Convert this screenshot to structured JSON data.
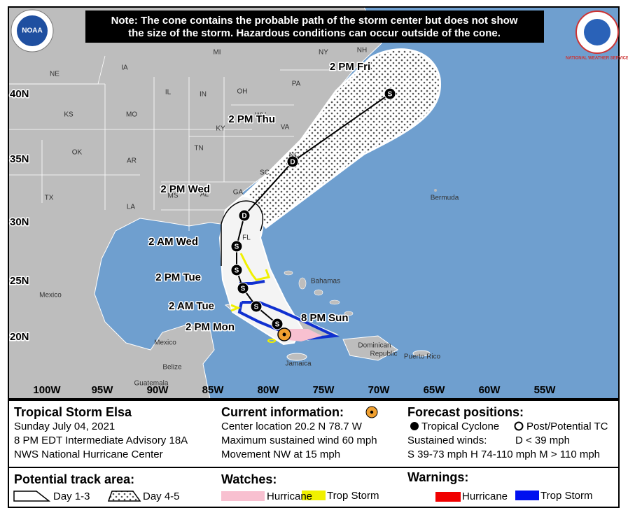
{
  "note": {
    "line1": "Note: The cone contains the probable path of the storm center but does not show",
    "line2": "the size of the storm. Hazardous conditions can occur outside of the cone."
  },
  "logos": {
    "noaa": "NOAA",
    "nws": "NATIONAL WEATHER SERVICE"
  },
  "map": {
    "latitudes": [
      "40N",
      "35N",
      "30N",
      "25N",
      "20N"
    ],
    "longitudes": [
      "100W",
      "95W",
      "90W",
      "85W",
      "80W",
      "75W",
      "70W",
      "65W",
      "60W",
      "55W"
    ],
    "places": [
      "NE",
      "IA",
      "MI",
      "NY",
      "NH",
      "PA",
      "IL",
      "IN",
      "OH",
      "KS",
      "MO",
      "WV",
      "KY",
      "VA",
      "OK",
      "AR",
      "TN",
      "NC",
      "SC",
      "GA",
      "AL",
      "MS",
      "LA",
      "TX",
      "FL",
      "Mexico",
      "Mexico",
      "Bermuda",
      "Bahamas",
      "Dominican",
      "Republic",
      "Puerto Rico",
      "Jamaica",
      "Belize",
      "Guatemala"
    ],
    "forecast_times": [
      "2 PM Fri",
      "2 PM Thu",
      "2 PM Wed",
      "2 AM Wed",
      "2 PM Tue",
      "2 AM Tue",
      "2 PM Mon",
      "8 PM Sun"
    ],
    "track_points": [
      "S",
      "D",
      "D",
      "S",
      "S",
      "S",
      "S",
      "S"
    ]
  },
  "info": {
    "storm": {
      "title": "Tropical Storm Elsa",
      "date": "Sunday July 04, 2021",
      "advisory": "8 PM EDT Intermediate Advisory 18A",
      "center": "NWS National Hurricane Center"
    },
    "current": {
      "title": "Current information:",
      "location": "Center location 20.2 N 78.7 W",
      "wind": "Maximum sustained wind 60 mph",
      "movement": "Movement NW at 15 mph"
    },
    "forecast": {
      "title": "Forecast positions:",
      "tropical": "Tropical Cyclone",
      "post": "Post/Potential TC",
      "winds": "Sustained winds:",
      "d": "D < 39 mph",
      "scale": "S 39-73 mph  H 74-110 mph  M > 110 mph"
    },
    "track_area": {
      "title": "Potential track area:",
      "day13": "Day 1-3",
      "day45": "Day 4-5"
    },
    "watches": {
      "title": "Watches:",
      "hurricane": "Hurricane",
      "storm": "Trop Storm"
    },
    "warnings": {
      "title": "Warnings:",
      "hurricane": "Hurricane",
      "storm": "Trop Storm"
    }
  }
}
